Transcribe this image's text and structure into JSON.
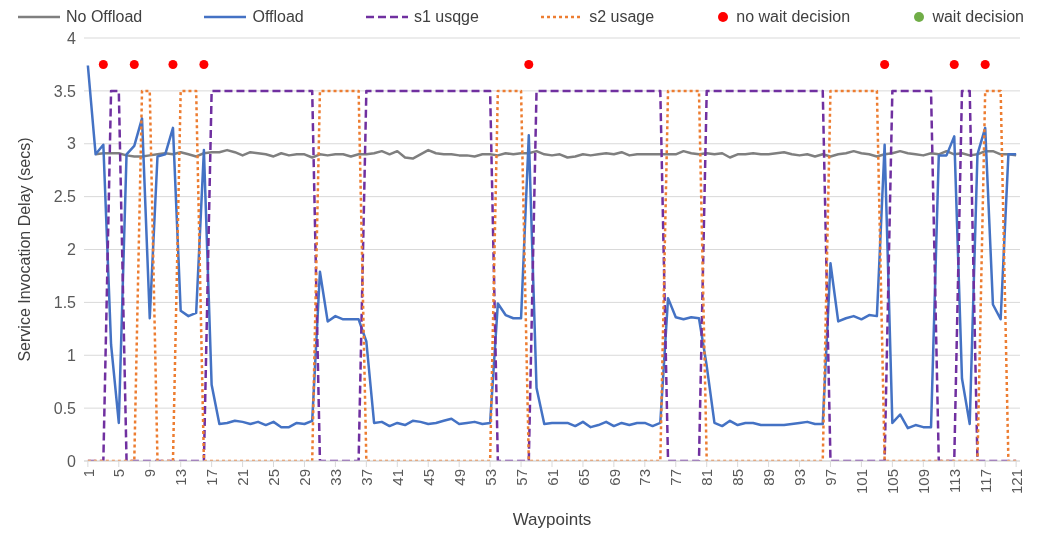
{
  "chart_data": {
    "type": "line",
    "xlabel": "Waypoints",
    "ylabel": "Service Invocation Delay (secs)",
    "x": [
      1,
      2,
      3,
      4,
      5,
      6,
      7,
      8,
      9,
      10,
      11,
      12,
      13,
      14,
      15,
      16,
      17,
      18,
      19,
      20,
      21,
      22,
      23,
      24,
      25,
      26,
      27,
      28,
      29,
      30,
      31,
      32,
      33,
      34,
      35,
      36,
      37,
      38,
      39,
      40,
      41,
      42,
      43,
      44,
      45,
      46,
      47,
      48,
      49,
      50,
      51,
      52,
      53,
      54,
      55,
      56,
      57,
      58,
      59,
      60,
      61,
      62,
      63,
      64,
      65,
      66,
      67,
      68,
      69,
      70,
      71,
      72,
      73,
      74,
      75,
      76,
      77,
      78,
      79,
      80,
      81,
      82,
      83,
      84,
      85,
      86,
      87,
      88,
      89,
      90,
      91,
      92,
      93,
      94,
      95,
      96,
      97,
      98,
      99,
      100,
      101,
      102,
      103,
      104,
      105,
      106,
      107,
      108,
      109,
      110,
      111,
      112,
      113,
      114,
      115,
      116,
      117,
      118,
      119,
      120,
      121
    ],
    "xlim": [
      0.5,
      121.5
    ],
    "xticks": [
      1,
      5,
      9,
      13,
      17,
      21,
      25,
      29,
      33,
      37,
      41,
      45,
      49,
      53,
      57,
      61,
      65,
      69,
      73,
      77,
      81,
      85,
      89,
      93,
      97,
      101,
      105,
      109,
      113,
      117,
      121
    ],
    "ylim": [
      0,
      4
    ],
    "yticks": [
      0,
      0.5,
      1,
      1.5,
      2,
      2.5,
      3,
      3.5,
      4
    ],
    "grid": "y",
    "legend": "top",
    "series": [
      {
        "name": "No Offload",
        "color": "#7f7f7f",
        "line_style": "solid",
        "values": [
          null,
          2.9,
          2.91,
          2.91,
          2.91,
          2.89,
          2.88,
          2.88,
          2.89,
          2.9,
          2.91,
          2.9,
          2.92,
          2.9,
          2.88,
          2.91,
          2.92,
          2.92,
          2.94,
          2.92,
          2.89,
          2.92,
          2.91,
          2.9,
          2.88,
          2.91,
          2.89,
          2.9,
          2.9,
          2.87,
          2.9,
          2.89,
          2.9,
          2.9,
          2.88,
          2.9,
          2.9,
          2.91,
          2.93,
          2.9,
          2.93,
          2.87,
          2.86,
          2.9,
          2.94,
          2.91,
          2.9,
          2.9,
          2.89,
          2.89,
          2.88,
          2.9,
          2.9,
          2.89,
          2.91,
          2.9,
          2.91,
          2.91,
          2.93,
          2.9,
          2.89,
          2.9,
          2.87,
          2.88,
          2.9,
          2.89,
          2.9,
          2.91,
          2.9,
          2.92,
          2.89,
          2.9,
          2.9,
          2.9,
          2.9,
          2.9,
          2.9,
          2.93,
          2.91,
          2.9,
          2.91,
          2.9,
          2.91,
          2.87,
          2.9,
          2.9,
          2.91,
          2.9,
          2.9,
          2.91,
          2.92,
          2.9,
          2.89,
          2.9,
          2.88,
          2.9,
          2.88,
          2.9,
          2.91,
          2.93,
          2.91,
          2.9,
          2.88,
          2.9,
          2.91,
          2.93,
          2.91,
          2.9,
          2.89,
          2.91,
          2.9,
          2.93,
          2.9,
          2.91,
          2.89,
          2.9,
          2.93,
          2.93,
          2.9,
          2.9,
          2.89
        ]
      },
      {
        "name": "Offload",
        "color": "#4472c4",
        "line_style": "solid",
        "values": [
          3.74,
          2.9,
          2.99,
          1.1,
          0.36,
          2.9,
          2.98,
          3.24,
          1.35,
          2.88,
          2.9,
          3.15,
          1.42,
          1.37,
          1.4,
          2.94,
          0.72,
          0.35,
          0.36,
          0.38,
          0.37,
          0.35,
          0.37,
          0.34,
          0.37,
          0.32,
          0.32,
          0.36,
          0.35,
          0.38,
          1.79,
          1.32,
          1.37,
          1.34,
          1.34,
          1.34,
          1.13,
          0.36,
          0.37,
          0.33,
          0.36,
          0.34,
          0.38,
          0.37,
          0.35,
          0.36,
          0.38,
          0.4,
          0.35,
          0.36,
          0.37,
          0.35,
          0.36,
          1.49,
          1.38,
          1.35,
          1.35,
          3.08,
          0.69,
          0.35,
          0.36,
          0.36,
          0.36,
          0.33,
          0.37,
          0.32,
          0.34,
          0.37,
          0.33,
          0.36,
          0.34,
          0.36,
          0.36,
          0.33,
          0.36,
          1.54,
          1.36,
          1.34,
          1.36,
          1.35,
          0.9,
          0.36,
          0.33,
          0.38,
          0.34,
          0.36,
          0.36,
          0.34,
          0.34,
          0.34,
          0.34,
          0.35,
          0.36,
          0.37,
          0.35,
          0.35,
          1.87,
          1.32,
          1.35,
          1.37,
          1.34,
          1.38,
          1.37,
          2.99,
          0.36,
          0.44,
          0.31,
          0.34,
          0.32,
          0.32,
          2.89,
          2.89,
          3.07,
          0.78,
          0.35,
          2.9,
          3.15,
          1.48,
          1.34,
          2.9,
          2.9
        ]
      },
      {
        "name": "s1 usqge",
        "color": "#7030a0",
        "line_style": "dashed",
        "values": [
          0,
          0,
          0,
          3.5,
          3.5,
          0,
          0,
          0,
          0,
          0,
          0,
          0,
          0,
          0,
          0,
          0,
          3.5,
          3.5,
          3.5,
          3.5,
          3.5,
          3.5,
          3.5,
          3.5,
          3.5,
          3.5,
          3.5,
          3.5,
          3.5,
          3.5,
          0,
          0,
          0,
          0,
          0,
          0,
          3.5,
          3.5,
          3.5,
          3.5,
          3.5,
          3.5,
          3.5,
          3.5,
          3.5,
          3.5,
          3.5,
          3.5,
          3.5,
          3.5,
          3.5,
          3.5,
          3.5,
          0,
          0,
          0,
          0,
          0,
          3.5,
          3.5,
          3.5,
          3.5,
          3.5,
          3.5,
          3.5,
          3.5,
          3.5,
          3.5,
          3.5,
          3.5,
          3.5,
          3.5,
          3.5,
          3.5,
          3.5,
          0,
          0,
          0,
          0,
          0,
          3.5,
          3.5,
          3.5,
          3.5,
          3.5,
          3.5,
          3.5,
          3.5,
          3.5,
          3.5,
          3.5,
          3.5,
          3.5,
          3.5,
          3.5,
          3.5,
          0,
          0,
          0,
          0,
          0,
          0,
          0,
          0,
          3.5,
          3.5,
          3.5,
          3.5,
          3.5,
          3.5,
          0,
          0,
          0,
          3.5,
          3.5,
          0,
          0,
          0,
          0,
          0,
          0
        ]
      },
      {
        "name": "s2 usage",
        "color": "#ed7d31",
        "line_style": "dotted",
        "values": [
          0,
          0,
          0,
          0,
          0,
          0,
          0,
          3.5,
          3.5,
          0,
          0,
          0,
          3.5,
          3.5,
          3.5,
          0,
          0,
          0,
          0,
          0,
          0,
          0,
          0,
          0,
          0,
          0,
          0,
          0,
          0,
          0,
          3.5,
          3.5,
          3.5,
          3.5,
          3.5,
          3.5,
          0,
          0,
          0,
          0,
          0,
          0,
          0,
          0,
          0,
          0,
          0,
          0,
          0,
          0,
          0,
          0,
          0,
          3.5,
          3.5,
          3.5,
          3.5,
          0,
          0,
          0,
          0,
          0,
          0,
          0,
          0,
          0,
          0,
          0,
          0,
          0,
          0,
          0,
          0,
          0,
          0,
          3.5,
          3.5,
          3.5,
          3.5,
          3.5,
          0,
          0,
          0,
          0,
          0,
          0,
          0,
          0,
          0,
          0,
          0,
          0,
          0,
          0,
          0,
          0,
          3.5,
          3.5,
          3.5,
          3.5,
          3.5,
          3.5,
          3.5,
          0,
          0,
          0,
          0,
          0,
          0,
          0,
          0,
          0,
          0,
          0,
          0,
          0,
          3.5,
          3.5,
          3.5,
          0,
          0
        ]
      },
      {
        "name": "no wait decision",
        "type": "scatter",
        "color": "#ff0000",
        "x": [
          3,
          7,
          12,
          16,
          58,
          104,
          113,
          117
        ],
        "values": [
          3.75,
          3.75,
          3.75,
          3.75,
          3.75,
          3.75,
          3.75,
          3.75
        ]
      },
      {
        "name": "wait decision",
        "type": "scatter",
        "color": "#70ad47",
        "values": [
          null,
          null,
          null,
          null,
          null,
          null,
          null,
          null,
          null,
          null,
          null,
          null,
          null,
          null,
          null,
          null,
          null,
          null,
          null,
          null,
          null,
          null,
          null,
          null,
          null,
          null,
          null,
          null,
          null,
          null,
          null,
          null,
          null,
          null,
          null,
          null,
          null,
          null,
          null,
          null,
          null,
          null,
          null,
          null,
          null,
          null,
          null,
          null,
          null,
          null,
          null,
          null,
          null,
          null,
          null,
          null,
          null,
          null,
          null,
          null,
          null,
          null,
          null,
          null,
          null,
          null,
          null,
          null,
          null,
          null,
          null,
          null,
          null,
          null,
          null,
          null,
          null,
          null,
          null,
          null,
          null,
          null,
          null,
          null,
          null,
          null,
          null,
          null,
          null,
          null,
          null,
          null,
          null,
          null,
          null,
          null,
          null,
          null,
          null,
          null,
          null,
          null,
          null,
          null,
          null,
          null,
          null,
          null,
          null,
          null,
          null,
          null,
          null,
          null,
          null,
          null,
          null,
          null,
          null,
          null,
          null
        ]
      }
    ]
  }
}
